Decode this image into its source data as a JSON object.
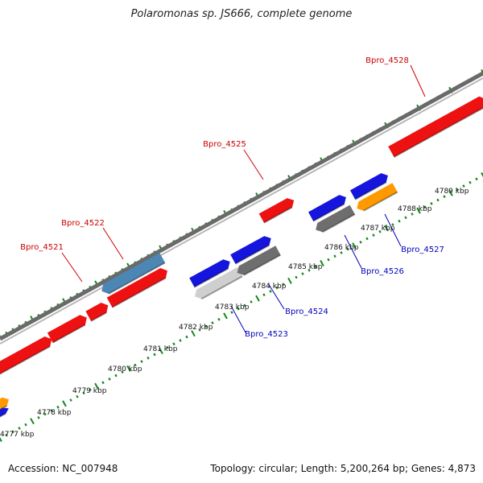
{
  "title": "Polaromonas sp. JS666, complete genome",
  "footer": {
    "accession": "Accession: NC_007948",
    "summary": "Topology: circular; Length: 5,200,264 bp; Genes: 4,873"
  },
  "colors": {
    "forward_gene": "#ee1111",
    "reverse_gene": "#1515dd",
    "rna_gene": "#4c86b4",
    "pseudo_gene": "#ff9900",
    "grey_gene": "#6e6e6e",
    "light_gene": "#cfcfcf",
    "backbone": "#888888",
    "tick": "#11881a",
    "forward_label": "#cc0000",
    "reverse_label": "#0000bb"
  },
  "ruler": {
    "tick_labels": [
      "4777 kbp",
      "4778 kbp",
      "4779 kbp",
      "4780 kbp",
      "4781 kbp",
      "4782 kbp",
      "4783 kbp",
      "4784 kbp",
      "4785 kbp",
      "4786 kbp",
      "4787 kbp",
      "4788 kbp",
      "4789 kbp"
    ]
  },
  "gene_labels": [
    {
      "text": "Bpro_4521",
      "strand": "forward"
    },
    {
      "text": "Bpro_4522",
      "strand": "forward"
    },
    {
      "text": "Bpro_4525",
      "strand": "forward"
    },
    {
      "text": "Bpro_4528",
      "strand": "forward"
    },
    {
      "text": "Bpro_4523",
      "strand": "reverse"
    },
    {
      "text": "Bpro_4524",
      "strand": "reverse"
    },
    {
      "text": "Bpro_4526",
      "strand": "reverse"
    },
    {
      "text": "Bpro_4527",
      "strand": "reverse"
    }
  ]
}
